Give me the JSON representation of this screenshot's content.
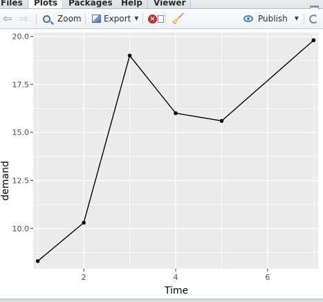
{
  "tabs": [
    {
      "label": "Files",
      "active": false
    },
    {
      "label": "Plots",
      "active": true
    },
    {
      "label": "Packages",
      "active": false
    },
    {
      "label": "Help",
      "active": false
    },
    {
      "label": "Viewer",
      "active": false
    }
  ],
  "toolbar": {
    "zoom_label": "Zoom",
    "export_label": "Export",
    "publish_label": "Publish",
    "icons": [
      "back-arrow-icon",
      "forward-arrow-icon",
      "zoom-icon",
      "export-icon",
      "remove-plot-icon",
      "broom-icon",
      "publish-icon",
      "refresh-icon"
    ]
  },
  "chart_data": {
    "type": "line",
    "x": [
      1,
      2,
      3,
      4,
      5,
      7
    ],
    "y": [
      8.3,
      10.3,
      19.0,
      16.0,
      15.6,
      19.8
    ],
    "xlabel": "Time",
    "ylabel": "demand",
    "xlim": [
      0.9,
      7.1
    ],
    "ylim": [
      7.9,
      20.2
    ],
    "x_ticks": [
      2,
      4,
      6
    ],
    "y_ticks": [
      10.0,
      12.5,
      15.0,
      17.5,
      20.0
    ],
    "y_tick_labels": [
      "10.0",
      "12.5",
      "15.0",
      "17.5",
      "20.0"
    ],
    "grid": true,
    "panel_background": "#ebebeb",
    "grid_color": "#ffffff",
    "line_color": "#000000"
  }
}
